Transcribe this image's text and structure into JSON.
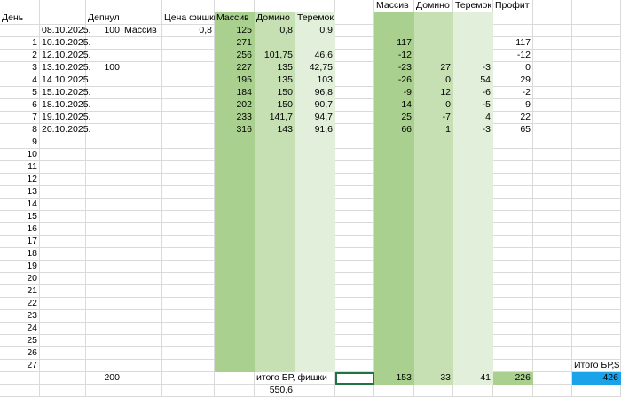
{
  "rows": [
    [
      null,
      null,
      null,
      null,
      null,
      null,
      null,
      null,
      null,
      "Массив",
      "Домино",
      "Теремок",
      "Профит",
      null,
      null
    ],
    [
      "День",
      null,
      "Депнул",
      null,
      "Цена фишки",
      "Массив",
      "Домино",
      "Теремок",
      null,
      null,
      null,
      null,
      null,
      null,
      null
    ],
    [
      null,
      "08.10.2025.",
      "100",
      "Массив",
      "0,8",
      "125",
      "0,8",
      "0,9",
      null,
      null,
      null,
      null,
      null,
      null,
      null
    ],
    [
      "1",
      "10.10.2025.",
      null,
      null,
      null,
      "271",
      null,
      null,
      null,
      "117",
      null,
      null,
      "117",
      null,
      null
    ],
    [
      "2",
      "12.10.2025.",
      null,
      null,
      null,
      "256",
      "101,75",
      "46,6",
      null,
      "-12",
      null,
      null,
      "-12",
      null,
      null
    ],
    [
      "3",
      "13.10.2025.",
      "100",
      null,
      null,
      "227",
      "135",
      "42,75",
      null,
      "-23",
      "27",
      "-3",
      "0",
      null,
      null
    ],
    [
      "4",
      "14.10.2025.",
      null,
      null,
      null,
      "195",
      "135",
      "103",
      null,
      "-26",
      "0",
      "54",
      "29",
      null,
      null
    ],
    [
      "5",
      "15.10.2025.",
      null,
      null,
      null,
      "184",
      "150",
      "96,8",
      null,
      "-9",
      "12",
      "-6",
      "-2",
      null,
      null
    ],
    [
      "6",
      "18.10.2025.",
      null,
      null,
      null,
      "202",
      "150",
      "90,7",
      null,
      "14",
      "0",
      "-5",
      "9",
      null,
      null
    ],
    [
      "7",
      "19.10.2025.",
      null,
      null,
      null,
      "233",
      "141,7",
      "94,7",
      null,
      "25",
      "-7",
      "4",
      "22",
      null,
      null
    ],
    [
      "8",
      "20.10.2025.",
      null,
      null,
      null,
      "316",
      "143",
      "91,6",
      null,
      "66",
      "1",
      "-3",
      "65",
      null,
      null
    ],
    [
      "9",
      null,
      null,
      null,
      null,
      null,
      null,
      null,
      null,
      null,
      null,
      null,
      null,
      null,
      null
    ],
    [
      "10",
      null,
      null,
      null,
      null,
      null,
      null,
      null,
      null,
      null,
      null,
      null,
      null,
      null,
      null
    ],
    [
      "11",
      null,
      null,
      null,
      null,
      null,
      null,
      null,
      null,
      null,
      null,
      null,
      null,
      null,
      null
    ],
    [
      "12",
      null,
      null,
      null,
      null,
      null,
      null,
      null,
      null,
      null,
      null,
      null,
      null,
      null,
      null
    ],
    [
      "13",
      null,
      null,
      null,
      null,
      null,
      null,
      null,
      null,
      null,
      null,
      null,
      null,
      null,
      null
    ],
    [
      "14",
      null,
      null,
      null,
      null,
      null,
      null,
      null,
      null,
      null,
      null,
      null,
      null,
      null,
      null
    ],
    [
      "15",
      null,
      null,
      null,
      null,
      null,
      null,
      null,
      null,
      null,
      null,
      null,
      null,
      null,
      null
    ],
    [
      "16",
      null,
      null,
      null,
      null,
      null,
      null,
      null,
      null,
      null,
      null,
      null,
      null,
      null,
      null
    ],
    [
      "17",
      null,
      null,
      null,
      null,
      null,
      null,
      null,
      null,
      null,
      null,
      null,
      null,
      null,
      null
    ],
    [
      "18",
      null,
      null,
      null,
      null,
      null,
      null,
      null,
      null,
      null,
      null,
      null,
      null,
      null,
      null
    ],
    [
      "19",
      null,
      null,
      null,
      null,
      null,
      null,
      null,
      null,
      null,
      null,
      null,
      null,
      null,
      null
    ],
    [
      "20",
      null,
      null,
      null,
      null,
      null,
      null,
      null,
      null,
      null,
      null,
      null,
      null,
      null,
      null
    ],
    [
      "21",
      null,
      null,
      null,
      null,
      null,
      null,
      null,
      null,
      null,
      null,
      null,
      null,
      null,
      null
    ],
    [
      "22",
      null,
      null,
      null,
      null,
      null,
      null,
      null,
      null,
      null,
      null,
      null,
      null,
      null,
      null
    ],
    [
      "23",
      null,
      null,
      null,
      null,
      null,
      null,
      null,
      null,
      null,
      null,
      null,
      null,
      null,
      null
    ],
    [
      "24",
      null,
      null,
      null,
      null,
      null,
      null,
      null,
      null,
      null,
      null,
      null,
      null,
      null,
      null
    ],
    [
      "25",
      null,
      null,
      null,
      null,
      null,
      null,
      null,
      null,
      null,
      null,
      null,
      null,
      null,
      null
    ],
    [
      "26",
      null,
      null,
      null,
      null,
      null,
      null,
      null,
      null,
      null,
      null,
      null,
      null,
      null,
      null
    ],
    [
      "27",
      null,
      null,
      null,
      null,
      null,
      null,
      null,
      null,
      null,
      null,
      null,
      null,
      null,
      "Итого БР,$"
    ],
    [
      null,
      null,
      "200",
      null,
      null,
      null,
      "итого БР, фишки",
      null,
      null,
      "153",
      "33",
      "41",
      "226",
      null,
      "426"
    ],
    [
      null,
      null,
      null,
      null,
      null,
      null,
      "550,6",
      null,
      null,
      null,
      null,
      null,
      null,
      null,
      null
    ]
  ]
}
